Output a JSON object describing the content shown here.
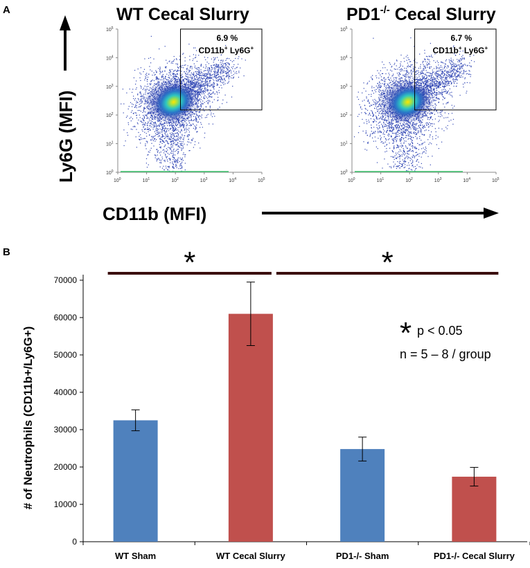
{
  "panel_a": {
    "letter": "A",
    "plots": [
      {
        "title_main": "WT  Cecal Slurry",
        "title_sup": "",
        "title_rest": "",
        "gate_percent": "6.9 %",
        "gate_label_a": "CD11b",
        "gate_sup_a": "+",
        "gate_label_b": " Ly6G",
        "gate_sup_b": "+"
      },
      {
        "title_main": "PD1",
        "title_sup": "-/-",
        "title_rest": " Cecal Slurry",
        "gate_percent": "6.7 %",
        "gate_label_a": "CD11b",
        "gate_sup_a": "+",
        "gate_label_b": " Ly6G",
        "gate_sup_b": "+"
      }
    ],
    "tick_base": "10",
    "tick_exponents": [
      "0",
      "1",
      "2",
      "3",
      "4",
      "5"
    ],
    "y_axis_label": "Ly6G  (MFI)",
    "x_axis_label": "CD11b  (MFI)"
  },
  "panel_b": {
    "letter": "B"
  },
  "colors": {
    "blue": "#4f81bd",
    "red": "#c0504d",
    "sig_line": "#3a0c0c"
  },
  "chart_data": [
    {
      "type": "scatter",
      "title": "WT  Cecal Slurry",
      "xlabel": "CD11b (MFI)",
      "ylabel": "Ly6G (MFI)",
      "x_scale": "log",
      "y_scale": "log",
      "xlim": [
        1,
        100000
      ],
      "ylim": [
        1,
        100000
      ],
      "gate": {
        "x_min": 150,
        "x_max": 100000,
        "y_min": 150,
        "y_max": 100000,
        "percent": 6.9,
        "label": "CD11b+ Ly6G+"
      }
    },
    {
      "type": "scatter",
      "title": "PD1-/- Cecal Slurry",
      "xlabel": "CD11b (MFI)",
      "ylabel": "Ly6G (MFI)",
      "x_scale": "log",
      "y_scale": "log",
      "xlim": [
        1,
        100000
      ],
      "ylim": [
        1,
        100000
      ],
      "gate": {
        "x_min": 150,
        "x_max": 100000,
        "y_min": 150,
        "y_max": 100000,
        "percent": 6.7,
        "label": "CD11b+ Ly6G+"
      }
    },
    {
      "type": "bar",
      "categories": [
        "WT Sham",
        "WT Cecal Slurry",
        "PD1-/- Sham",
        "PD1-/- Cecal Slurry"
      ],
      "values": [
        32500,
        61000,
        24800,
        17400
      ],
      "errors": [
        2800,
        8500,
        3200,
        2500
      ],
      "bar_colors": [
        "#4f81bd",
        "#c0504d",
        "#4f81bd",
        "#c0504d"
      ],
      "ylabel": "# of Neutrophils (CD11b+/Ly6G+)",
      "xlabel": "",
      "ylim": [
        0,
        70000
      ],
      "yticks": [
        "0",
        "10000",
        "20000",
        "30000",
        "40000",
        "50000",
        "60000",
        "70000"
      ],
      "significance": [
        {
          "from": "WT Sham",
          "to": "WT Cecal Slurry",
          "symbol": "*"
        },
        {
          "from": "WT Cecal Slurry",
          "to": "PD1-/- Cecal Slurry",
          "symbol": "*"
        }
      ],
      "legend": {
        "symbol": "*",
        "pvalue": "p < 0.05",
        "n_text": "n = 5 – 8 / group"
      }
    }
  ]
}
